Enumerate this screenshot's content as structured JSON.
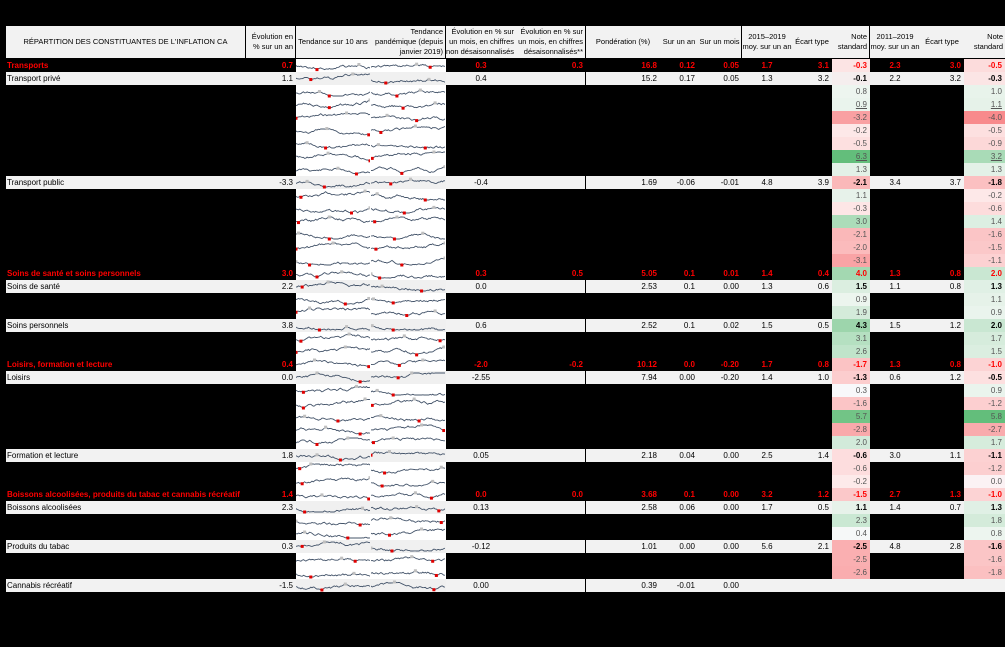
{
  "header": {
    "category": "RÉPARTITION DES CONSTITUANTES DE L'INFLATION CA",
    "yoy": "Évolution en % sur un an",
    "trend10": "Tendance sur 10 ans",
    "trendPandemic": "Tendance pandémique (depuis janvier 2019)",
    "momNSA": "Évolution en % sur un mois, en chiffres non désaisonnalisés",
    "momSA": "Évolution en % sur un mois, en chiffres désaisonnalisés**",
    "weight": "Pondération (%)",
    "contribYear": "Sur un an",
    "contribMonth": "Sur un mois",
    "avg1519": "2015–2019 moy. sur un an",
    "sd1519": "Écart type",
    "z1519": "Note standard",
    "avg1119": "2011–2019 moy. sur un an",
    "sd1119": "Écart type",
    "z1119": "Note standard"
  },
  "colors": {
    "accentRed": "#ff0000",
    "greenStrong": "#63be7b",
    "greenLight": "#d6ecdc",
    "redStrong": "#f8696b",
    "redLight": "#fbdadb",
    "neutral": "#f2f2f2"
  },
  "rows": [
    {
      "type": "section",
      "label": "Transports",
      "yoy": "0.7",
      "momNSA": "0.3",
      "momSA": "0.3",
      "weight": "16.8",
      "cy": "0.12",
      "cm": "0.05",
      "a1": "1.7",
      "s1": "3.1",
      "z1": "-0.3",
      "a2": "2.3",
      "s2": "3.0",
      "z2": "-0.5",
      "z1c": "#fce4e4",
      "z2c": "#fcdcdc"
    },
    {
      "type": "item",
      "label": "Transport privé",
      "yoy": "1.1",
      "momNSA": "0.4",
      "momSA": "",
      "weight": "15.2",
      "cy": "0.17",
      "cm": "0.05",
      "a1": "1.3",
      "s1": "3.2",
      "z1": "-0.1",
      "a2": "2.2",
      "s2": "3.2",
      "z2": "-0.3",
      "z1c": "#f5eeee",
      "z2c": "#fbe5e5"
    },
    {
      "type": "sub",
      "z1": "0.8",
      "z2": "1.0",
      "z1c": "#edf5ef",
      "z2c": "#e8f3eb"
    },
    {
      "type": "sub",
      "z1": "0.9",
      "z2": "1.1",
      "z1c": "#eaf4ed",
      "z2c": "#e6f2e9",
      "u": true
    },
    {
      "type": "sub",
      "z1": "-3.2",
      "z2": "-4.0",
      "z1c": "#f9a0a2",
      "z2c": "#f88a8c"
    },
    {
      "type": "sub",
      "z1": "-0.2",
      "z2": "-0.5",
      "z1c": "#fde8e8",
      "z2c": "#fde0e0"
    },
    {
      "type": "sub",
      "z1": "-0.5",
      "z2": "-0.9",
      "z1c": "#fde0e0",
      "z2c": "#fcd8d8"
    },
    {
      "type": "sub",
      "z1": "6.3",
      "z2": "3.2",
      "z1c": "#63be7b",
      "z2c": "#a9dbb7",
      "u": true
    },
    {
      "type": "sub",
      "z1": "1.3",
      "z2": "1.3",
      "z1c": "#e3f1e7",
      "z2c": "#e3f1e7"
    },
    {
      "type": "item",
      "label": "Transport public",
      "yoy": "-3.3",
      "momNSA": "-0.4",
      "momSA": "",
      "weight": "1.69",
      "cy": "-0.06",
      "cm": "-0.01",
      "a1": "4.8",
      "s1": "3.9",
      "z1": "-2.1",
      "a2": "3.4",
      "s2": "3.7",
      "z2": "-1.8",
      "z1c": "#fab8b9",
      "z2c": "#fbc0c1"
    },
    {
      "type": "sub",
      "z1": "1.1",
      "z2": "-0.2",
      "z1c": "#e7f2ea",
      "z2c": "#fde8e8"
    },
    {
      "type": "sub",
      "z1": "-0.3",
      "z2": "-0.6",
      "z1c": "#fde6e6",
      "z2c": "#fddcdc"
    },
    {
      "type": "sub",
      "z1": "3.0",
      "z2": "1.4",
      "z1c": "#acdcb9",
      "z2c": "#dcefe2"
    },
    {
      "type": "sub",
      "z1": "-2.1",
      "z2": "-1.6",
      "z1c": "#fab8b9",
      "z2c": "#fbc5c6"
    },
    {
      "type": "sub",
      "z1": "-2.0",
      "z2": "-1.5",
      "z1c": "#fbbbbc",
      "z2c": "#fbc8c9"
    },
    {
      "type": "sub",
      "z1": "-3.1",
      "z2": "-1.1",
      "z1c": "#f9a3a5",
      "z2c": "#fcd1d2"
    },
    {
      "type": "section",
      "label": "Soins de santé et soins personnels",
      "yoy": "3.0",
      "momNSA": "0.3",
      "momSA": "0.5",
      "weight": "5.05",
      "cy": "0.1",
      "cm": "0.01",
      "a1": "1.4",
      "s1": "0.4",
      "z1": "4.0",
      "a2": "1.3",
      "s2": "0.8",
      "z2": "2.0",
      "z1c": "#a3d8b1",
      "z2c": "#c9e7d2"
    },
    {
      "type": "item",
      "label": "Soins de santé",
      "yoy": "2.2",
      "momNSA": "0.0",
      "momSA": "",
      "weight": "2.53",
      "cy": "0.1",
      "cm": "0.00",
      "a1": "1.3",
      "s1": "0.6",
      "z1": "1.5",
      "a2": "1.1",
      "s2": "0.8",
      "z2": "1.3",
      "z1c": "#dbeee0",
      "z2c": "#e0f0e5"
    },
    {
      "type": "sub",
      "z1": "0.9",
      "z2": "1.1",
      "z1c": "#ecf5ee",
      "z2c": "#e6f2e9"
    },
    {
      "type": "sub",
      "z1": "1.9",
      "z2": "0.9",
      "z1c": "#d4ebda",
      "z2c": "#eaf4ed"
    },
    {
      "type": "item",
      "label": "Soins personnels",
      "yoy": "3.8",
      "momNSA": "0.6",
      "momSA": "",
      "weight": "2.52",
      "cy": "0.1",
      "cm": "0.02",
      "a1": "1.5",
      "s1": "0.5",
      "z1": "4.3",
      "a2": "1.5",
      "s2": "1.2",
      "z2": "2.0",
      "z1c": "#9dd5ac",
      "z2c": "#c9e7d2"
    },
    {
      "type": "sub",
      "z1": "3.1",
      "z2": "1.7",
      "z1c": "#b5e0c1",
      "z2c": "#d6ecdc"
    },
    {
      "type": "sub",
      "z1": "2.6",
      "z2": "1.5",
      "z1c": "#c0e4ca",
      "z2c": "#dbeee0"
    },
    {
      "type": "section",
      "label": "Loisirs, formation et lecture",
      "yoy": "0.4",
      "momNSA": "-2.0",
      "momSA": "-0.2",
      "weight": "10.12",
      "cy": "0.0",
      "cm": "-0.20",
      "a1": "1.7",
      "s1": "0.8",
      "z1": "-1.7",
      "a2": "1.3",
      "s2": "0.8",
      "z2": "-1.0",
      "z1c": "#fbc3c4",
      "z2c": "#fcd3d4"
    },
    {
      "type": "item",
      "label": "Loisirs",
      "yoy": "0.0",
      "momNSA": "-2.55",
      "momSA": "",
      "weight": "7.94",
      "cy": "0.00",
      "cm": "-0.20",
      "a1": "1.4",
      "s1": "1.0",
      "z1": "-1.3",
      "a2": "0.6",
      "s2": "1.2",
      "z2": "-0.5",
      "z1c": "#fccdce",
      "z2c": "#fde0e0"
    },
    {
      "type": "sub",
      "z1": "0.3",
      "z2": "0.9",
      "z1c": "#f8f8fa",
      "z2c": "#eaf4ed"
    },
    {
      "type": "sub",
      "z1": "-1.6",
      "z2": "-1.2",
      "z1c": "#fbc5c6",
      "z2c": "#fccfd0"
    },
    {
      "type": "sub",
      "z1": "5.7",
      "z2": "5.8",
      "z1c": "#72c486",
      "z2c": "#63be7b"
    },
    {
      "type": "sub",
      "z1": "-2.8",
      "z2": "-2.7",
      "z1c": "#f9a9ab",
      "z2c": "#f9abad"
    },
    {
      "type": "sub",
      "z1": "2.0",
      "z2": "1.7",
      "z1c": "#d2eada",
      "z2c": "#d6ecdc"
    },
    {
      "type": "item",
      "label": "Formation et lecture",
      "yoy": "1.8",
      "momNSA": "0.05",
      "momSA": "",
      "weight": "2.18",
      "cy": "0.04",
      "cm": "0.00",
      "a1": "2.5",
      "s1": "1.4",
      "z1": "-0.6",
      "a2": "3.0",
      "s2": "1.1",
      "z2": "-1.1",
      "z1c": "#fdddde",
      "z2c": "#fcd1d2"
    },
    {
      "type": "sub",
      "z1": "-0.6",
      "z2": "-1.2",
      "z1c": "#fdddde",
      "z2c": "#fccfd0"
    },
    {
      "type": "sub",
      "z1": "-0.2",
      "z2": "0.0",
      "z1c": "#fdeaea",
      "z2c": "#fbf2f4"
    },
    {
      "type": "section",
      "label": "Boissons alcoolisées, produits du tabac et cannabis récréatif",
      "yoy": "1.4",
      "momNSA": "0.0",
      "momSA": "0.0",
      "weight": "3.68",
      "cy": "0.1",
      "cm": "0.00",
      "a1": "3.2",
      "s1": "1.2",
      "z1": "-1.5",
      "a2": "2.7",
      "s2": "1.3",
      "z2": "-1.0",
      "z1c": "#fbc8c9",
      "z2c": "#fcd3d4"
    },
    {
      "type": "item",
      "label": "Boissons alcoolisées",
      "yoy": "2.3",
      "momNSA": "0.13",
      "momSA": "",
      "weight": "2.58",
      "cy": "0.06",
      "cm": "0.00",
      "a1": "1.7",
      "s1": "0.5",
      "z1": "1.1",
      "a2": "1.4",
      "s2": "0.7",
      "z2": "1.3",
      "z1c": "#e7f2ea",
      "z2c": "#e0f0e5"
    },
    {
      "type": "sub",
      "z1": "2.3",
      "z2": "1.8",
      "z1c": "#cae8d3",
      "z2c": "#d4ebda"
    },
    {
      "type": "sub",
      "z1": "0.4",
      "z2": "0.8",
      "z1c": "#f6f8f8",
      "z2c": "#edf5ef"
    },
    {
      "type": "item",
      "label": "Produits du tabac",
      "yoy": "0.3",
      "momNSA": "-0.12",
      "momSA": "",
      "weight": "1.01",
      "cy": "0.00",
      "cm": "0.00",
      "a1": "5.6",
      "s1": "2.1",
      "z1": "-2.5",
      "a2": "4.8",
      "s2": "2.8",
      "z2": "-1.6",
      "z1c": "#faafb1",
      "z2c": "#fbc5c6"
    },
    {
      "type": "sub",
      "z1": "-2.5",
      "z2": "-1.6",
      "z1c": "#faafb1",
      "z2c": "#fbc5c6"
    },
    {
      "type": "sub",
      "z1": "-2.6",
      "z2": "-1.8",
      "z1c": "#faadaf",
      "z2c": "#fbc0c1"
    },
    {
      "type": "item",
      "label": "Cannabis récréatif",
      "yoy": "-1.5",
      "momNSA": "0.00",
      "momSA": "",
      "weight": "0.39",
      "cy": "-0.01",
      "cm": "0.00",
      "a1": "",
      "s1": "",
      "z1": "",
      "a2": "",
      "s2": "",
      "z2": "",
      "z1c": "#f2f2f2",
      "z2c": "#f2f2f2"
    }
  ]
}
